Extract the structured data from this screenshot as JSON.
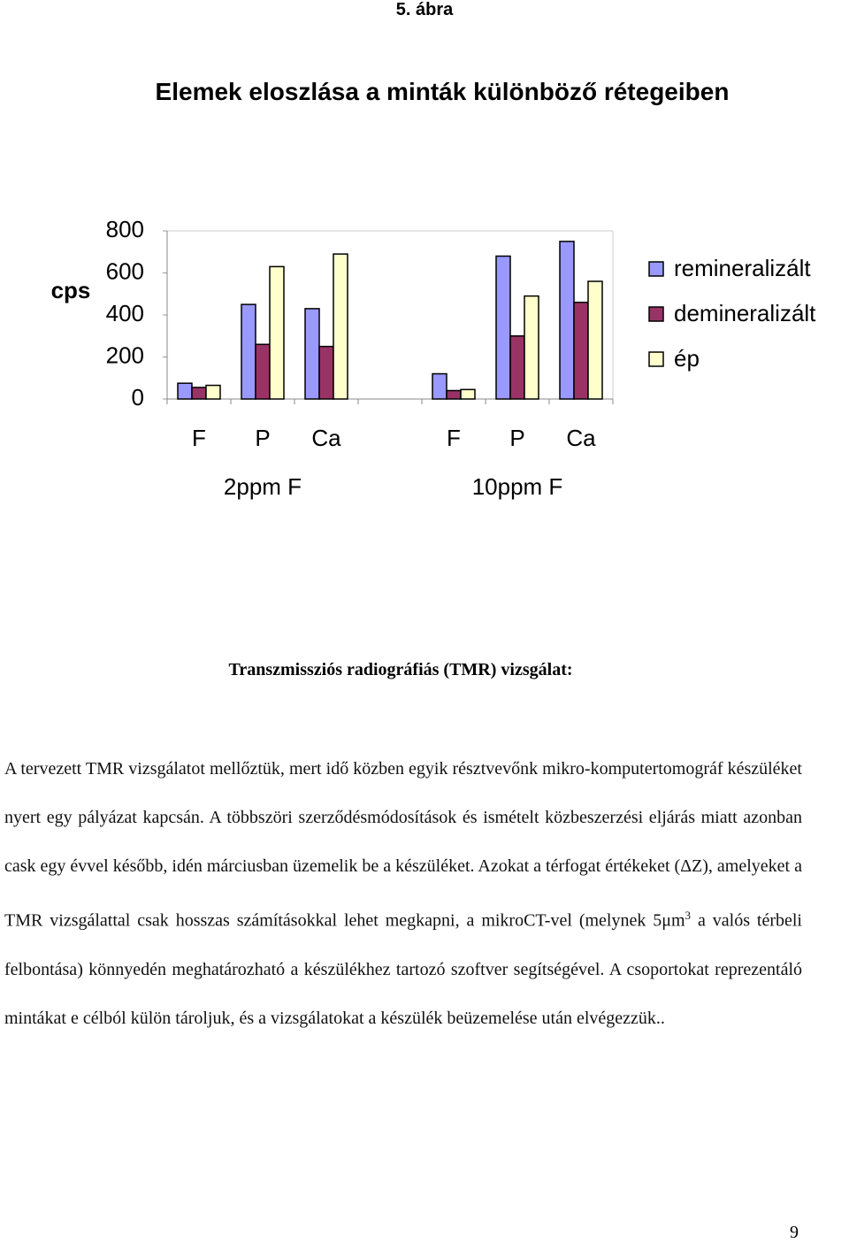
{
  "figure_label": "5. ábra",
  "title": "Elemek eloszlása a minták különböző rétegeiben",
  "chart_data": {
    "type": "bar",
    "y_label": "cps",
    "categories": [
      "F",
      "P",
      "Ca",
      null,
      "F",
      "P",
      "Ca"
    ],
    "group_labels": [
      "2ppm F",
      "10ppm F"
    ],
    "series": [
      {
        "name": "remineralizált",
        "color": "#9999ff",
        "values": [
          75,
          450,
          430,
          null,
          120,
          680,
          750
        ]
      },
      {
        "name": "demineralizált",
        "color": "#993366",
        "values": [
          55,
          260,
          250,
          null,
          40,
          300,
          460
        ]
      },
      {
        "name": "ép",
        "color": "#ffffcc",
        "values": [
          65,
          630,
          690,
          null,
          45,
          490,
          560
        ]
      }
    ],
    "ylim": [
      0,
      800
    ],
    "yticks": [
      0,
      200,
      400,
      600,
      800
    ],
    "grid": false,
    "legend": "right"
  },
  "section_heading": "Transzmissziós radiográfiás (TMR) vizsgálat:",
  "body": [
    "A tervezett TMR vizsgálatot mellőztük, mert idő közben egyik résztvevőnk mikro-komputertomográf készüléket nyert egy pályázat kapcsán. A többszöri szerződésmódosítások és ismételt közbeszerzési eljárás miatt azonban cask egy évvel később, idén márciusban üzemelik be a készüléket. Azokat a térfogat értékeket (ΔZ), amelyeket a TMR vizsgálattal csak hosszas számításokkal lehet megkapni, a mikroCT-vel (melynek 5μm",
    "3",
    " a valós térbeli felbontása) könnyedén meghatározható a készülékhez tartozó szoftver segítségével. A csoportokat reprezentáló mintákat e célból külön tároljuk, és a vizsgálatokat a készülék beüzemelése után elvégezzük.."
  ],
  "page_number": "9"
}
